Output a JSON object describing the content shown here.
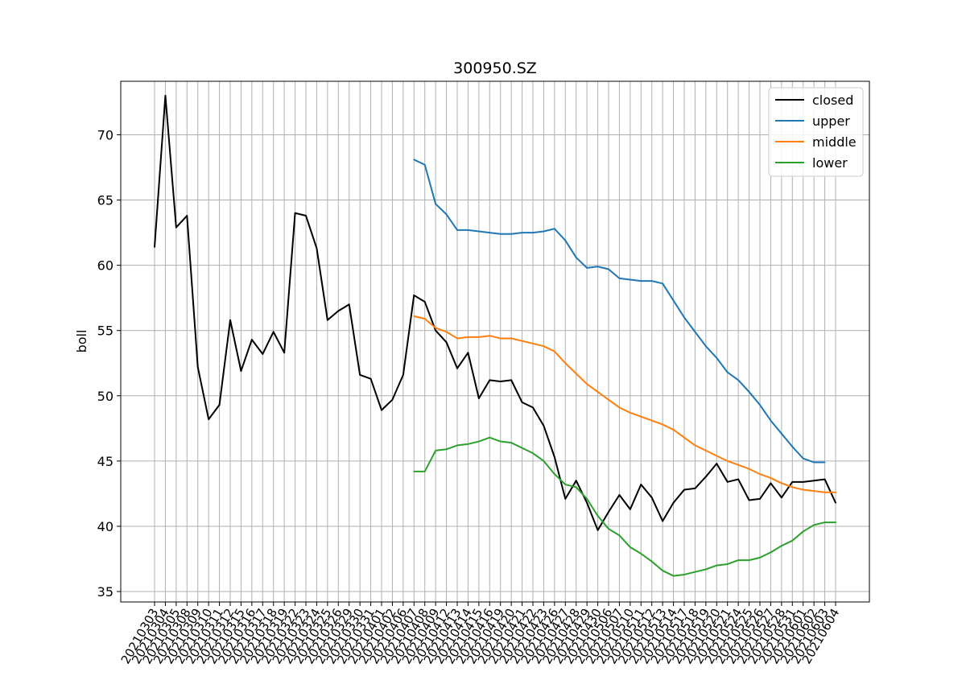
{
  "chart_data": {
    "type": "line",
    "title": "300950.SZ",
    "xlabel": "",
    "ylabel": "boll",
    "ylim": [
      34.2,
      74.1
    ],
    "yticks": [
      35,
      40,
      45,
      50,
      55,
      60,
      65,
      70
    ],
    "grid": true,
    "legend_position": "top-right",
    "x": [
      "20210303",
      "20210304",
      "20210305",
      "20210308",
      "20210309",
      "20210310",
      "20210311",
      "20210312",
      "20210315",
      "20210316",
      "20210317",
      "20210318",
      "20210319",
      "20210322",
      "20210323",
      "20210324",
      "20210325",
      "20210326",
      "20210329",
      "20210330",
      "20210331",
      "20210401",
      "20210402",
      "20210406",
      "20210407",
      "20210408",
      "20210409",
      "20210412",
      "20210413",
      "20210414",
      "20210415",
      "20210416",
      "20210419",
      "20210420",
      "20210421",
      "20210422",
      "20210423",
      "20210426",
      "20210427",
      "20210428",
      "20210429",
      "20210430",
      "20210506",
      "20210507",
      "20210510",
      "20210511",
      "20210512",
      "20210513",
      "20210514",
      "20210517",
      "20210518",
      "20210519",
      "20210520",
      "20210521",
      "20210524",
      "20210525",
      "20210526",
      "20210527",
      "20210528",
      "20210531",
      "20210601",
      "20210602",
      "20210603",
      "20210604"
    ],
    "series": [
      {
        "name": "closed",
        "color": "#000000",
        "values": [
          61.4,
          73.0,
          62.9,
          63.8,
          52.2,
          48.2,
          49.3,
          55.8,
          51.9,
          54.3,
          53.2,
          54.9,
          53.3,
          64.0,
          63.8,
          61.3,
          55.8,
          56.5,
          57.0,
          51.6,
          51.3,
          48.9,
          49.7,
          51.6,
          57.7,
          57.2,
          55.0,
          54.1,
          52.1,
          53.3,
          49.8,
          51.2,
          51.1,
          51.2,
          49.5,
          49.1,
          47.7,
          45.3,
          42.1,
          43.5,
          41.8,
          39.7,
          41.1,
          42.4,
          41.3,
          43.2,
          42.2,
          40.4,
          41.8,
          42.8,
          42.9,
          43.8,
          44.8,
          43.4,
          43.6,
          42.0,
          42.1,
          43.3,
          42.2,
          43.4,
          43.4,
          43.5,
          43.6,
          41.8
        ]
      },
      {
        "name": "upper",
        "color": "#1f77b4",
        "values": [
          null,
          null,
          null,
          null,
          null,
          null,
          null,
          null,
          null,
          null,
          null,
          null,
          null,
          null,
          null,
          null,
          null,
          null,
          null,
          null,
          null,
          null,
          null,
          null,
          68.1,
          67.7,
          64.7,
          63.9,
          62.7,
          62.7,
          62.6,
          62.5,
          62.4,
          62.4,
          62.5,
          62.5,
          62.6,
          62.8,
          61.9,
          60.6,
          59.8,
          59.9,
          59.7,
          59.0,
          58.9,
          58.8,
          58.8,
          58.6,
          57.3,
          56.0,
          54.9,
          53.8,
          52.9,
          51.8,
          51.2,
          50.3,
          49.3,
          48.1,
          47.1,
          46.1,
          45.2,
          44.9,
          44.9,
          null
        ]
      },
      {
        "name": "middle",
        "color": "#ff7f0e",
        "values": [
          null,
          null,
          null,
          null,
          null,
          null,
          null,
          null,
          null,
          null,
          null,
          null,
          null,
          null,
          null,
          null,
          null,
          null,
          null,
          null,
          null,
          null,
          null,
          null,
          56.1,
          55.9,
          55.2,
          54.9,
          54.4,
          54.5,
          54.5,
          54.6,
          54.4,
          54.4,
          54.2,
          54.0,
          53.8,
          53.4,
          52.5,
          51.7,
          50.9,
          50.3,
          49.7,
          49.1,
          48.7,
          48.4,
          48.1,
          47.8,
          47.4,
          46.8,
          46.2,
          45.8,
          45.4,
          45.0,
          44.7,
          44.4,
          44.0,
          43.7,
          43.3,
          43.0,
          42.8,
          42.7,
          42.6,
          42.6
        ]
      },
      {
        "name": "lower",
        "color": "#2ca02c",
        "values": [
          null,
          null,
          null,
          null,
          null,
          null,
          null,
          null,
          null,
          null,
          null,
          null,
          null,
          null,
          null,
          null,
          null,
          null,
          null,
          null,
          null,
          null,
          null,
          null,
          44.2,
          44.2,
          45.8,
          45.9,
          46.2,
          46.3,
          46.5,
          46.8,
          46.5,
          46.4,
          46.0,
          45.6,
          45.0,
          44.0,
          43.2,
          43.0,
          42.1,
          40.8,
          39.8,
          39.3,
          38.4,
          37.9,
          37.3,
          36.6,
          36.2,
          36.3,
          36.5,
          36.7,
          37.0,
          37.1,
          37.4,
          37.4,
          37.6,
          38.0,
          38.5,
          38.9,
          39.6,
          40.1,
          40.3,
          40.3
        ]
      }
    ]
  }
}
